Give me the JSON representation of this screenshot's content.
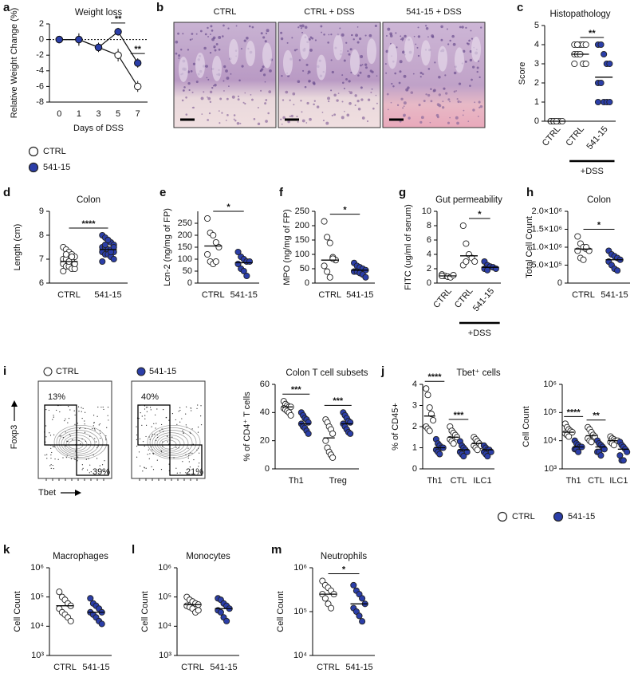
{
  "micrographs": {
    "panel": "b",
    "titles": [
      "CTRL",
      "CTRL + DSS",
      "541-15 + DSS"
    ]
  },
  "flow_cytometry": {
    "panel": "i",
    "y_label": "Foxp3",
    "x_label": "Tbet",
    "plots": [
      {
        "name": "CTRL",
        "color": "#ffffff",
        "quadrant_labels": [
          "13%",
          "39%"
        ]
      },
      {
        "name": "541-15",
        "color": "#2b3ea8",
        "quadrant_labels": [
          "40%",
          "21%"
        ]
      }
    ]
  },
  "chart_data": [
    {
      "type": "line",
      "panel": "a",
      "title": "Weight loss",
      "y_label": "Relative Weight Change (%)",
      "x_label": "Days of DSS",
      "categories": [
        "0",
        "1",
        "3",
        "5",
        "7"
      ],
      "ylim": [
        -8,
        2
      ],
      "yticks": [
        -8,
        -6,
        -4,
        -2,
        0,
        2
      ],
      "legend": "below",
      "series": [
        {
          "name": "CTRL",
          "color": "#ffffff",
          "values": [
            0,
            0,
            -1,
            -2,
            -6
          ],
          "errors": [
            0.3,
            0.8,
            0.6,
            0.8,
            0.7
          ]
        },
        {
          "name": "541-15",
          "color": "#2b3ea8",
          "values": [
            0,
            0,
            -1,
            1,
            -3
          ],
          "errors": [
            0.3,
            0.7,
            0.5,
            0.5,
            0.6
          ]
        }
      ],
      "significance": [
        {
          "label": "**",
          "category": 3
        },
        {
          "label": "**",
          "category": 4
        }
      ]
    },
    {
      "type": "dot",
      "panel": "c",
      "title": "Histopathology",
      "y_label": "Score",
      "categories": [
        "CTRL",
        "CTRL",
        "541-15"
      ],
      "ylim": [
        0,
        5
      ],
      "yticks": [
        0,
        1,
        2,
        3,
        4,
        5
      ],
      "group_label": {
        "label": "+DSS",
        "categories": [
          1,
          2
        ]
      },
      "groups": [
        {
          "color": "#ffffff",
          "values": [
            0,
            0,
            0,
            0,
            0,
            0,
            0,
            0
          ],
          "mean": 0
        },
        {
          "color": "#ffffff",
          "values": [
            4,
            4,
            4,
            4,
            4,
            3.5,
            3.5,
            3.5,
            3,
            3,
            3,
            4
          ],
          "mean": 3.5
        },
        {
          "color": "#2b3ea8",
          "values": [
            4,
            4,
            3.5,
            3,
            3,
            2,
            2,
            1,
            1,
            1,
            1
          ],
          "mean": 2.3
        }
      ],
      "significance": [
        {
          "label": "**",
          "categories": [
            1,
            2
          ]
        }
      ]
    },
    {
      "type": "dot",
      "panel": "d",
      "title": "Colon",
      "y_label": "Length (cm)",
      "categories": [
        "CTRL",
        "541-15"
      ],
      "ylim": [
        6,
        9
      ],
      "yticks": [
        6,
        7,
        8,
        9
      ],
      "groups": [
        {
          "color": "#ffffff",
          "values": [
            7.5,
            7.4,
            7.3,
            7.2,
            7.1,
            7.0,
            7.0,
            6.9,
            6.9,
            6.8,
            6.8,
            6.7,
            6.7,
            6.6,
            6.6,
            6.5,
            7.2,
            6.9,
            7.1,
            6.8
          ],
          "mean": 6.9
        },
        {
          "color": "#2b3ea8",
          "values": [
            8.0,
            7.9,
            7.8,
            7.7,
            7.6,
            7.5,
            7.5,
            7.4,
            7.4,
            7.3,
            7.3,
            7.2,
            7.2,
            7.1,
            7.0,
            6.9,
            7.6,
            7.8,
            7.3,
            7.5
          ],
          "mean": 7.4
        }
      ],
      "significance": [
        {
          "label": "****",
          "categories": [
            0,
            1
          ]
        }
      ]
    },
    {
      "type": "dot",
      "panel": "e",
      "y_label": "Lcn-2 (ng/mg of FP)",
      "categories": [
        "CTRL",
        "541-15"
      ],
      "ylim": [
        0,
        300
      ],
      "yticks": [
        0,
        50,
        100,
        150,
        200,
        250
      ],
      "groups": [
        {
          "color": "#ffffff",
          "values": [
            270,
            210,
            200,
            170,
            150,
            120,
            90,
            80,
            90
          ],
          "mean": 155
        },
        {
          "color": "#2b3ea8",
          "values": [
            130,
            110,
            100,
            90,
            90,
            80,
            60,
            50,
            30
          ],
          "mean": 85
        }
      ],
      "significance": [
        {
          "label": "*",
          "categories": [
            0,
            1
          ]
        }
      ]
    },
    {
      "type": "dot",
      "panel": "f",
      "y_label": "MPO (ng/mg of FP)",
      "categories": [
        "CTRL",
        "541-15"
      ],
      "ylim": [
        0,
        250
      ],
      "yticks": [
        0,
        50,
        100,
        150,
        200,
        250
      ],
      "groups": [
        {
          "color": "#ffffff",
          "values": [
            215,
            160,
            140,
            90,
            80,
            60,
            40,
            20,
            85
          ],
          "mean": 80
        },
        {
          "color": "#2b3ea8",
          "values": [
            70,
            60,
            55,
            50,
            45,
            40,
            40,
            35,
            30,
            20
          ],
          "mean": 45
        }
      ],
      "significance": [
        {
          "label": "*",
          "categories": [
            0,
            1
          ]
        }
      ]
    },
    {
      "type": "dot",
      "panel": "g",
      "title": "Gut permeability",
      "y_label": "FITC (ug/ml of serum)",
      "categories": [
        "CTRL",
        "CTRL",
        "541-15"
      ],
      "ylim": [
        0,
        10
      ],
      "yticks": [
        0,
        2,
        4,
        6,
        8,
        10
      ],
      "group_label": {
        "label": "+DSS",
        "categories": [
          1,
          2
        ]
      },
      "groups": [
        {
          "color": "#ffffff",
          "values": [
            1.2,
            1.0,
            0.9,
            0.8,
            1.1,
            1.0
          ],
          "mean": 1.0
        },
        {
          "color": "#ffffff",
          "values": [
            8,
            5.5,
            4,
            3.5,
            3,
            2.5,
            3
          ],
          "mean": 3.8
        },
        {
          "color": "#2b3ea8",
          "values": [
            3,
            2.5,
            2.3,
            2.2,
            2,
            2,
            1.8
          ],
          "mean": 2.2
        }
      ],
      "significance": [
        {
          "label": "*",
          "categories": [
            1,
            2
          ]
        }
      ]
    },
    {
      "type": "dot",
      "panel": "h",
      "title": "Colon",
      "y_label": "Total Cell Count",
      "categories": [
        "CTRL",
        "541-15"
      ],
      "ylim": [
        0,
        2000000
      ],
      "yticks": [
        0,
        {
          "value": 500000,
          "label": "5.0×10⁵"
        },
        {
          "value": 1000000,
          "label": "1.0×10⁶"
        },
        {
          "value": 1500000,
          "label": "1.5×10⁶"
        },
        {
          "value": 2000000,
          "label": "2.0×10⁶"
        }
      ],
      "groups": [
        {
          "color": "#ffffff",
          "values": [
            1300000,
            1100000,
            1000000,
            950000,
            900000,
            900000,
            700000,
            650000,
            1000000
          ],
          "mean": 950000
        },
        {
          "color": "#2b3ea8",
          "values": [
            900000,
            800000,
            750000,
            700000,
            650000,
            600000,
            500000,
            400000,
            350000
          ],
          "mean": 650000
        }
      ],
      "significance": [
        {
          "label": "*",
          "categories": [
            0,
            1
          ]
        }
      ]
    },
    {
      "type": "dot",
      "title": "Colon T cell subsets",
      "y_label": "% of CD4⁺ T cells",
      "categories": [
        "Th1",
        "Treg"
      ],
      "ylim": [
        0,
        60
      ],
      "yticks": [
        0,
        20,
        40,
        60
      ],
      "series": [
        {
          "color": "#ffffff",
          "values": [
            [
              48,
              46,
              45,
              44,
              44,
              43,
              42,
              41,
              40,
              38
            ],
            [
              35,
              33,
              30,
              28,
              25,
              20,
              15,
              12,
              10,
              8
            ]
          ],
          "means": [
            44,
            22
          ]
        },
        {
          "color": "#2b3ea8",
          "values": [
            [
              40,
              38,
              36,
              35,
              33,
              32,
              30,
              29,
              27,
              25
            ],
            [
              40,
              38,
              36,
              34,
              33,
              32,
              30,
              28,
              26,
              25
            ]
          ],
          "means": [
            32,
            32
          ]
        }
      ],
      "significance": [
        {
          "label": "***",
          "category": 0
        },
        {
          "label": "***",
          "category": 1
        }
      ]
    },
    {
      "type": "dot",
      "panel": "j",
      "title": "Tbet⁺ cells",
      "y_label": "% of CD45+",
      "categories": [
        "Th1",
        "CTL",
        "ILC1"
      ],
      "ylim": [
        0,
        4
      ],
      "yticks": [
        0,
        1,
        2,
        3,
        4
      ],
      "legend": "below",
      "series": [
        {
          "name": "CTRL",
          "color": "#ffffff",
          "values": [
            [
              3.8,
              3.5,
              2.9,
              2.6,
              2.3,
              2.0,
              1.9,
              1.8
            ],
            [
              2.0,
              1.8,
              1.7,
              1.6,
              1.5,
              1.4,
              1.3,
              1.2
            ],
            [
              1.5,
              1.4,
              1.3,
              1.2,
              1.1,
              1.1,
              1.0,
              0.9
            ]
          ],
          "means": [
            2.5,
            1.5,
            1.2
          ]
        },
        {
          "name": "541-15",
          "color": "#2b3ea8",
          "values": [
            [
              1.4,
              1.2,
              1.1,
              1.0,
              1.0,
              0.9,
              0.8,
              0.7
            ],
            [
              1.3,
              1.1,
              1.0,
              0.9,
              0.8,
              0.8,
              0.7,
              0.6
            ],
            [
              1.1,
              1.0,
              0.9,
              0.9,
              0.8,
              0.8,
              0.7,
              0.6
            ]
          ],
          "means": [
            1.0,
            0.9,
            0.9
          ]
        }
      ],
      "significance": [
        {
          "label": "****",
          "category": 0
        },
        {
          "label": "***",
          "category": 1
        }
      ]
    },
    {
      "type": "dot",
      "y_label": "Cell Count",
      "categories": [
        "Th1",
        "CTL",
        "ILC1"
      ],
      "log": true,
      "ylim": [
        1000,
        1000000
      ],
      "yticks": [
        {
          "value": 1000,
          "label": "10³"
        },
        {
          "value": 10000,
          "label": "10⁴"
        },
        {
          "value": 100000,
          "label": "10⁵"
        },
        {
          "value": 1000000,
          "label": "10⁶"
        }
      ],
      "series": [
        {
          "color": "#ffffff",
          "values": [
            [
              40000,
              30000,
              25000,
              22000,
              20000,
              18000,
              16000,
              14000
            ],
            [
              30000,
              25000,
              20000,
              16000,
              14000,
              12000,
              10000,
              9000
            ],
            [
              14000,
              12000,
              11000,
              10000,
              10000,
              9000,
              8000,
              7000
            ]
          ],
          "means": [
            20000,
            15000,
            10000
          ]
        },
        {
          "color": "#2b3ea8",
          "values": [
            [
              10000,
              8000,
              7000,
              6000,
              6000,
              5000,
              5000,
              4000
            ],
            [
              10000,
              8000,
              7000,
              6000,
              5000,
              4000,
              4000,
              3000
            ],
            [
              9000,
              7000,
              6000,
              5000,
              4000,
              3000,
              2000,
              2000
            ]
          ],
          "means": [
            6000,
            6000,
            5000
          ]
        }
      ],
      "significance": [
        {
          "label": "****",
          "category": 0
        },
        {
          "label": "**",
          "category": 1
        }
      ]
    },
    {
      "type": "dot",
      "panel": "k",
      "title": "Macrophages",
      "y_label": "Cell Count",
      "categories": [
        "CTRL",
        "541-15"
      ],
      "log": true,
      "ylim": [
        1000,
        1000000
      ],
      "yticks": [
        {
          "value": 1000,
          "label": "10³"
        },
        {
          "value": 10000,
          "label": "10⁴"
        },
        {
          "value": 100000,
          "label": "10⁵"
        },
        {
          "value": 1000000,
          "label": "10⁶"
        }
      ],
      "groups": [
        {
          "color": "#ffffff",
          "values": [
            150000,
            100000,
            80000,
            60000,
            50000,
            40000,
            30000,
            25000,
            20000,
            15000
          ],
          "mean": 50000
        },
        {
          "color": "#2b3ea8",
          "values": [
            90000,
            60000,
            50000,
            40000,
            30000,
            30000,
            25000,
            20000,
            15000,
            12000
          ],
          "mean": 30000
        }
      ]
    },
    {
      "type": "dot",
      "panel": "l",
      "title": "Monocytes",
      "y_label": "Cell Count",
      "categories": [
        "CTRL",
        "541-15"
      ],
      "log": true,
      "ylim": [
        1000,
        1000000
      ],
      "yticks": [
        {
          "value": 1000,
          "label": "10³"
        },
        {
          "value": 10000,
          "label": "10⁴"
        },
        {
          "value": 100000,
          "label": "10⁵"
        },
        {
          "value": 1000000,
          "label": "10⁶"
        }
      ],
      "groups": [
        {
          "color": "#ffffff",
          "values": [
            100000,
            80000,
            70000,
            60000,
            55000,
            50000,
            45000,
            40000,
            30000,
            35000
          ],
          "mean": 55000
        },
        {
          "color": "#2b3ea8",
          "values": [
            90000,
            80000,
            60000,
            50000,
            40000,
            35000,
            30000,
            20000,
            15000
          ],
          "mean": 40000
        }
      ]
    },
    {
      "type": "dot",
      "panel": "m",
      "title": "Neutrophils",
      "y_label": "Cell Count",
      "categories": [
        "CTRL",
        "541-15"
      ],
      "log": true,
      "ylim": [
        10000,
        1000000
      ],
      "yticks": [
        {
          "value": 10000,
          "label": "10⁴"
        },
        {
          "value": 100000,
          "label": "10⁵"
        },
        {
          "value": 1000000,
          "label": "10⁶"
        }
      ],
      "groups": [
        {
          "color": "#ffffff",
          "values": [
            500000,
            400000,
            350000,
            300000,
            250000,
            250000,
            200000,
            150000,
            120000
          ],
          "mean": 250000
        },
        {
          "color": "#2b3ea8",
          "values": [
            400000,
            300000,
            250000,
            200000,
            150000,
            120000,
            100000,
            80000,
            60000
          ],
          "mean": 150000
        }
      ],
      "significance": [
        {
          "label": "*",
          "categories": [
            0,
            1
          ]
        }
      ]
    }
  ]
}
